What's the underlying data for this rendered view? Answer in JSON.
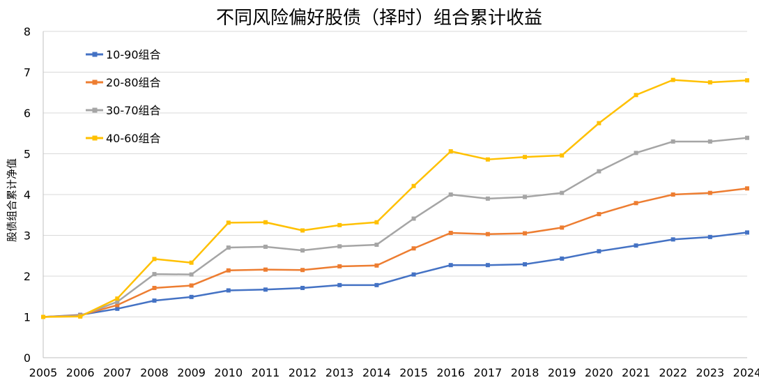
{
  "chart_data": {
    "type": "line",
    "title": "不同风险偏好股债（择时）组合累计收益",
    "xlabel": "",
    "ylabel": "股债组合累计净值",
    "ylim": [
      0,
      8
    ],
    "yticks": [
      0,
      1,
      2,
      3,
      4,
      5,
      6,
      7,
      8
    ],
    "grid": true,
    "legend_position": "top-left",
    "categories": [
      "2005",
      "2006",
      "2007",
      "2008",
      "2009",
      "2010",
      "2011",
      "2012",
      "2013",
      "2014",
      "2015",
      "2016",
      "2017",
      "2018",
      "2019",
      "2020",
      "2021",
      "2022",
      "2023",
      "2024"
    ],
    "series": [
      {
        "name": "10-90组合",
        "color": "#4472C4",
        "values": [
          1.0,
          1.05,
          1.2,
          1.4,
          1.49,
          1.65,
          1.67,
          1.71,
          1.78,
          1.78,
          2.04,
          2.27,
          2.27,
          2.29,
          2.43,
          2.61,
          2.75,
          2.9,
          2.96,
          3.07
        ]
      },
      {
        "name": "20-80组合",
        "color": "#ED7D31",
        "values": [
          1.0,
          1.04,
          1.29,
          1.71,
          1.77,
          2.14,
          2.16,
          2.15,
          2.24,
          2.26,
          2.68,
          3.06,
          3.03,
          3.05,
          3.19,
          3.52,
          3.79,
          4.0,
          4.04,
          4.15
        ]
      },
      {
        "name": "30-70组合",
        "color": "#A5A5A5",
        "values": [
          1.0,
          1.03,
          1.37,
          2.05,
          2.04,
          2.7,
          2.72,
          2.63,
          2.73,
          2.77,
          3.41,
          4.0,
          3.9,
          3.94,
          4.04,
          4.57,
          5.02,
          5.3,
          5.3,
          5.39
        ]
      },
      {
        "name": "40-60组合",
        "color": "#FFC000",
        "values": [
          1.0,
          1.01,
          1.45,
          2.42,
          2.33,
          3.31,
          3.32,
          3.12,
          3.25,
          3.32,
          4.21,
          5.06,
          4.86,
          4.92,
          4.96,
          5.75,
          6.44,
          6.81,
          6.75,
          6.8
        ]
      }
    ]
  }
}
